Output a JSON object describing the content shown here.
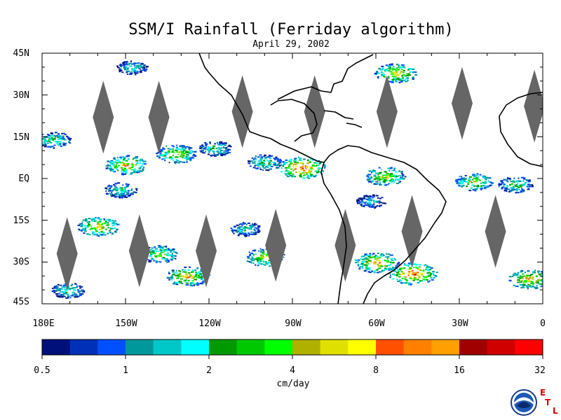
{
  "title": "SSM/I Rainfall (Ferriday algorithm)",
  "date": "April 29, 2002",
  "latitude_labels": [
    "45N",
    "30N",
    "15N",
    "EQ",
    "15S",
    "30S",
    "45S"
  ],
  "longitude_labels": [
    "180E",
    "150W",
    "120W",
    "90W",
    "60W",
    "30W",
    "0"
  ],
  "colorbar": {
    "units": "cm/day",
    "tick_labels": [
      "0.5",
      "1",
      "2",
      "4",
      "8",
      "16",
      "32"
    ],
    "colors": [
      "#00107a",
      "#0030b8",
      "#0050ff",
      "#00989a",
      "#00c8c8",
      "#00ffff",
      "#009a00",
      "#00c800",
      "#00ff00",
      "#b0b000",
      "#e0e000",
      "#ffff00",
      "#ff5000",
      "#ff8000",
      "#ffa000",
      "#a00000",
      "#d00000",
      "#ff0000"
    ]
  },
  "map": {
    "extent": {
      "lon": [
        -180,
        0
      ],
      "lat": [
        -45,
        45
      ]
    },
    "no_data_color": "#666666",
    "gaps": [
      {
        "lon": -158,
        "lat": 22
      },
      {
        "lon": -138,
        "lat": 22
      },
      {
        "lon": -108,
        "lat": 24
      },
      {
        "lon": -82,
        "lat": 24
      },
      {
        "lon": -56,
        "lat": 24
      },
      {
        "lon": -29,
        "lat": 27
      },
      {
        "lon": -3,
        "lat": 26
      },
      {
        "lon": -171,
        "lat": -27
      },
      {
        "lon": -145,
        "lat": -26
      },
      {
        "lon": -121,
        "lat": -26
      },
      {
        "lon": -96,
        "lat": -24
      },
      {
        "lon": -71,
        "lat": -24
      },
      {
        "lon": -47,
        "lat": -19
      },
      {
        "lon": -17,
        "lat": -19
      }
    ],
    "rain_regions": [
      {
        "lon": -53,
        "lat": 38,
        "level": 13
      },
      {
        "lon": -148,
        "lat": 40,
        "level": 7
      },
      {
        "lon": -176,
        "lat": 14,
        "level": 9
      },
      {
        "lon": -150,
        "lat": 5,
        "level": 13
      },
      {
        "lon": -132,
        "lat": 9,
        "level": 12
      },
      {
        "lon": -118,
        "lat": 11,
        "level": 8
      },
      {
        "lon": -100,
        "lat": 6,
        "level": 9
      },
      {
        "lon": -87,
        "lat": 4,
        "level": 16
      },
      {
        "lon": -160,
        "lat": -17,
        "level": 13
      },
      {
        "lon": -138,
        "lat": -27,
        "level": 11
      },
      {
        "lon": -128,
        "lat": -35,
        "level": 13
      },
      {
        "lon": -171,
        "lat": -40,
        "level": 8
      },
      {
        "lon": -100,
        "lat": -28,
        "level": 12
      },
      {
        "lon": -60,
        "lat": -30,
        "level": 14
      },
      {
        "lon": -47,
        "lat": -34,
        "level": 16
      },
      {
        "lon": -57,
        "lat": 1,
        "level": 12
      },
      {
        "lon": -5,
        "lat": -36,
        "level": 13
      },
      {
        "lon": -25,
        "lat": -1,
        "level": 11
      },
      {
        "lon": -10,
        "lat": -2,
        "level": 9
      },
      {
        "lon": -152,
        "lat": -4,
        "level": 8
      },
      {
        "lon": -107,
        "lat": -18,
        "level": 7
      },
      {
        "lon": -62,
        "lat": -8,
        "level": 6
      }
    ]
  }
}
